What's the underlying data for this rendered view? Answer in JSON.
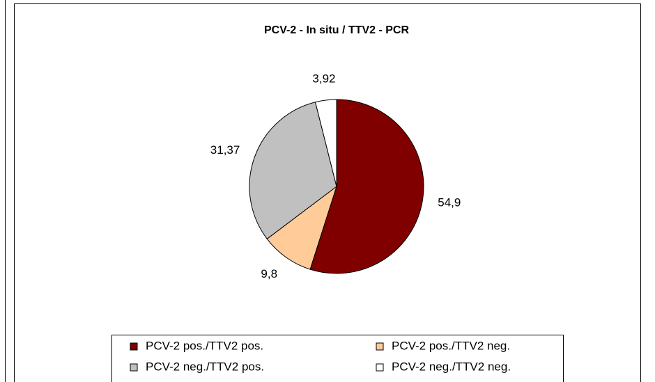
{
  "chart_data": {
    "type": "pie",
    "title": "PCV-2 - In situ / TTV2 - PCR",
    "categories": [
      "PCV-2 pos./TTV2 pos.",
      "PCV-2 pos./TTV2 neg.",
      "PCV-2 neg./TTV2 pos.",
      "PCV-2 neg./TTV2 neg."
    ],
    "values": [
      54.9,
      9.8,
      31.37,
      3.92
    ],
    "value_labels": [
      "54,9",
      "9,8",
      "31,37",
      "3,92"
    ],
    "colors": [
      "#800000",
      "#ffcc99",
      "#c0c0c0",
      "#ffffff"
    ],
    "legend": "bottom"
  }
}
